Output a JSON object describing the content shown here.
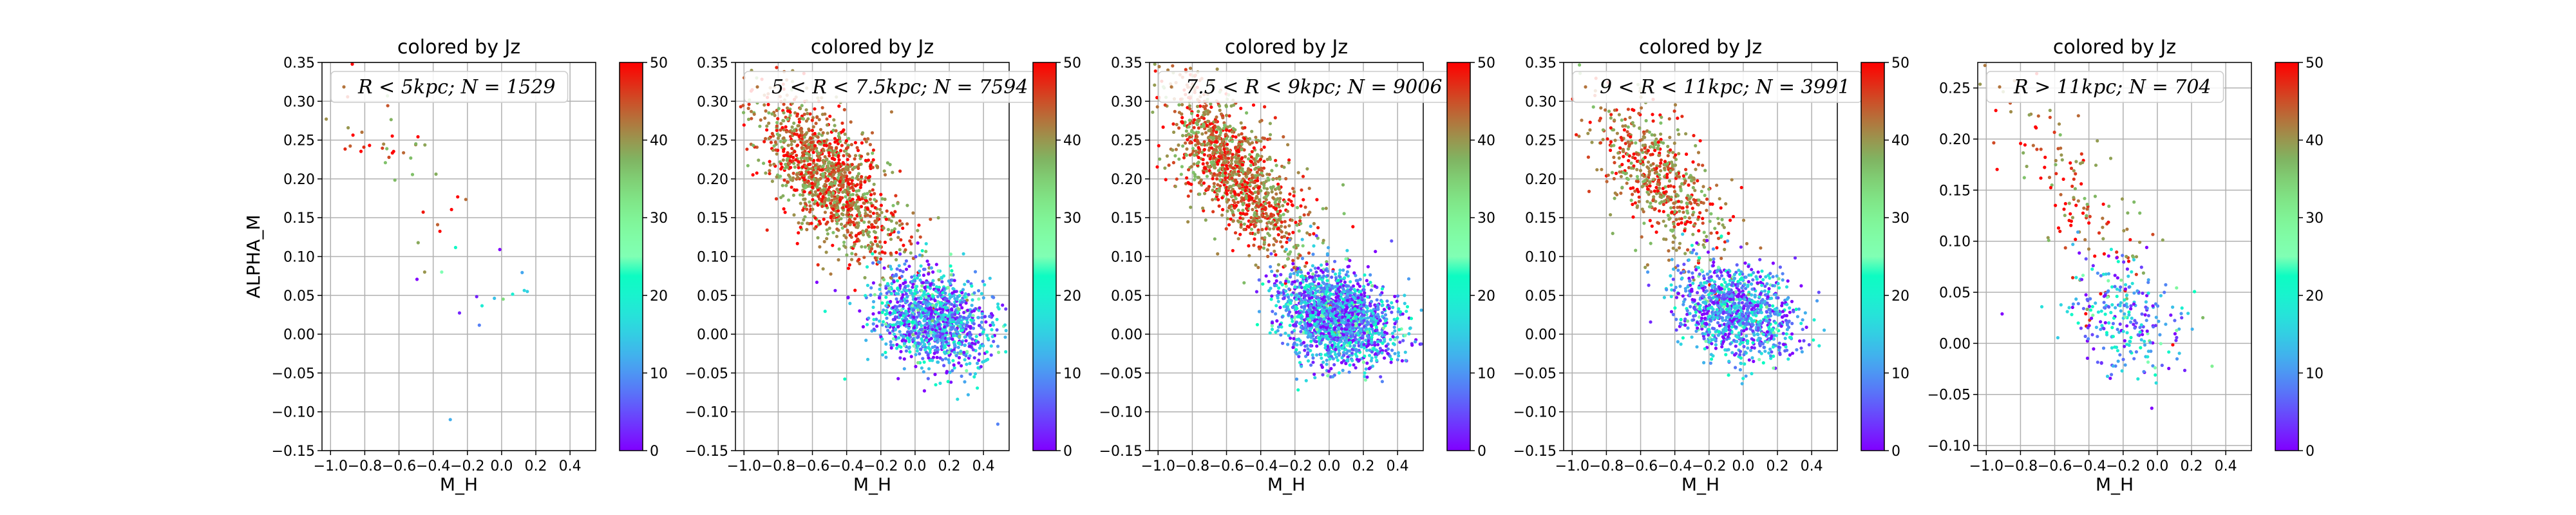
{
  "chart_data": [
    {
      "type": "scatter",
      "title": "colored by Jz",
      "xlabel": "M_H",
      "ylabel": "ALPHA_M",
      "legend": "R < 5kpc;  N = 1529",
      "xlim": [
        -1.05,
        0.55
      ],
      "ylim": [
        -0.15,
        0.35
      ],
      "xticks": [
        -1.0,
        -0.8,
        -0.6,
        -0.4,
        -0.2,
        0.0,
        0.2,
        0.4
      ],
      "xtick_labels": [
        "−1.0",
        "−0.8",
        "−0.6",
        "−0.4",
        "−0.2",
        "0.0",
        "0.2",
        "0.4"
      ],
      "yticks": [
        -0.15,
        -0.1,
        -0.05,
        0.0,
        0.05,
        0.1,
        0.15,
        0.2,
        0.25,
        0.3,
        0.35
      ],
      "ytick_labels": [
        "−0.15",
        "−0.10",
        "−0.05",
        "0.00",
        "0.05",
        "0.10",
        "0.15",
        "0.20",
        "0.25",
        "0.30",
        "0.35"
      ],
      "grid": true,
      "legend_position": "top",
      "colorbar": {
        "label": "",
        "range": [
          0,
          50
        ],
        "ticks": [
          0,
          10,
          20,
          30,
          40,
          50
        ],
        "tick_labels": [
          "0",
          "10",
          "20",
          "30",
          "40",
          "50"
        ],
        "colormap": "rainbow"
      },
      "distribution": {
        "thin_points": 40,
        "thick_points": 12,
        "thin_center": [
          -0.6,
          0.22
        ],
        "thick_center": [
          0.1,
          0.03
        ],
        "outliers": [
          [
            -0.3,
            -0.11,
            12
          ],
          [
            -0.45,
            0.08,
            40
          ],
          [
            0.15,
            0.055,
            15
          ],
          [
            -0.35,
            0.08,
            25
          ]
        ]
      }
    },
    {
      "type": "scatter",
      "title": "colored by Jz",
      "xlabel": "M_H",
      "ylabel": "",
      "legend": "5 < R < 7.5kpc;  N = 7594",
      "xlim": [
        -1.05,
        0.55
      ],
      "ylim": [
        -0.15,
        0.35
      ],
      "xticks": [
        -1.0,
        -0.8,
        -0.6,
        -0.4,
        -0.2,
        0.0,
        0.2,
        0.4
      ],
      "xtick_labels": [
        "−1.0",
        "−0.8",
        "−0.6",
        "−0.4",
        "−0.2",
        "0.0",
        "0.2",
        "0.4"
      ],
      "yticks": [
        -0.15,
        -0.1,
        -0.05,
        0.0,
        0.05,
        0.1,
        0.15,
        0.2,
        0.25,
        0.3,
        0.35
      ],
      "ytick_labels": [
        "−0.15",
        "−0.10",
        "−0.05",
        "0.00",
        "0.05",
        "0.10",
        "0.15",
        "0.20",
        "0.25",
        "0.30",
        "0.35"
      ],
      "grid": true,
      "legend_position": "top",
      "colorbar": {
        "label": "",
        "range": [
          0,
          50
        ],
        "ticks": [
          0,
          10,
          20,
          30,
          40,
          50
        ],
        "tick_labels": [
          "0",
          "10",
          "20",
          "30",
          "40",
          "50"
        ],
        "colormap": "rainbow"
      },
      "distribution": {
        "thin_points": 1300,
        "thick_points": 1200,
        "thin_center": [
          -0.5,
          0.2
        ],
        "thick_center": [
          0.1,
          0.02
        ],
        "outliers": []
      }
    },
    {
      "type": "scatter",
      "title": "colored by Jz",
      "xlabel": "M_H",
      "ylabel": "",
      "legend": "7.5 < R < 9kpc;  N = 9006",
      "xlim": [
        -1.05,
        0.55
      ],
      "ylim": [
        -0.15,
        0.35
      ],
      "xticks": [
        -1.0,
        -0.8,
        -0.6,
        -0.4,
        -0.2,
        0.0,
        0.2,
        0.4
      ],
      "xtick_labels": [
        "−1.0",
        "−0.8",
        "−0.6",
        "−0.4",
        "−0.2",
        "0.0",
        "0.2",
        "0.4"
      ],
      "yticks": [
        -0.15,
        -0.1,
        -0.05,
        0.0,
        0.05,
        0.1,
        0.15,
        0.2,
        0.25,
        0.3,
        0.35
      ],
      "ytick_labels": [
        "−0.15",
        "−0.10",
        "−0.05",
        "0.00",
        "0.05",
        "0.10",
        "0.15",
        "0.20",
        "0.25",
        "0.30",
        "0.35"
      ],
      "grid": true,
      "legend_position": "top",
      "colorbar": {
        "label": "",
        "range": [
          0,
          50
        ],
        "ticks": [
          0,
          10,
          20,
          30,
          40,
          50
        ],
        "tick_labels": [
          "0",
          "10",
          "20",
          "30",
          "40",
          "50"
        ],
        "colormap": "rainbow"
      },
      "distribution": {
        "thin_points": 1200,
        "thick_points": 1700,
        "thin_center": [
          -0.55,
          0.21
        ],
        "thick_center": [
          0.05,
          0.02
        ],
        "outliers": []
      }
    },
    {
      "type": "scatter",
      "title": "colored by Jz",
      "xlabel": "M_H",
      "ylabel": "",
      "legend": "9 < R < 11kpc;  N = 3991",
      "xlim": [
        -1.05,
        0.55
      ],
      "ylim": [
        -0.15,
        0.35
      ],
      "xticks": [
        -1.0,
        -0.8,
        -0.6,
        -0.4,
        -0.2,
        0.0,
        0.2,
        0.4
      ],
      "xtick_labels": [
        "−1.0",
        "−0.8",
        "−0.6",
        "−0.4",
        "−0.2",
        "0.0",
        "0.2",
        "0.4"
      ],
      "yticks": [
        -0.15,
        -0.1,
        -0.05,
        0.0,
        0.05,
        0.1,
        0.15,
        0.2,
        0.25,
        0.3,
        0.35
      ],
      "ytick_labels": [
        "−0.15",
        "−0.10",
        "−0.05",
        "0.00",
        "0.05",
        "0.10",
        "0.15",
        "0.20",
        "0.25",
        "0.30",
        "0.35"
      ],
      "grid": true,
      "legend_position": "top",
      "colorbar": {
        "label": "",
        "range": [
          0,
          50
        ],
        "ticks": [
          0,
          10,
          20,
          30,
          40,
          50
        ],
        "tick_labels": [
          "0",
          "10",
          "20",
          "30",
          "40",
          "50"
        ],
        "colormap": "rainbow"
      },
      "distribution": {
        "thin_points": 600,
        "thick_points": 1100,
        "thin_center": [
          -0.5,
          0.2
        ],
        "thick_center": [
          -0.05,
          0.03
        ],
        "outliers": []
      }
    },
    {
      "type": "scatter",
      "title": "colored by Jz",
      "xlabel": "M_H",
      "ylabel": "",
      "legend": "R > 11kpc;  N = 704",
      "xlim": [
        -1.05,
        0.55
      ],
      "ylim": [
        -0.105,
        0.275
      ],
      "xticks": [
        -1.0,
        -0.8,
        -0.6,
        -0.4,
        -0.2,
        0.0,
        0.2,
        0.4
      ],
      "xtick_labels": [
        "−1.0",
        "−0.8",
        "−0.6",
        "−0.4",
        "−0.2",
        "0.0",
        "0.2",
        "0.4"
      ],
      "yticks": [
        -0.1,
        -0.05,
        0.0,
        0.05,
        0.1,
        0.15,
        0.2,
        0.25
      ],
      "ytick_labels": [
        "−0.10",
        "−0.05",
        "0.00",
        "0.05",
        "0.10",
        "0.15",
        "0.20",
        "0.25"
      ],
      "grid": true,
      "legend_position": "top",
      "colorbar": {
        "label": "",
        "range": [
          0,
          50
        ],
        "ticks": [
          0,
          10,
          20,
          30,
          40,
          50
        ],
        "tick_labels": [
          "0",
          "10",
          "20",
          "30",
          "40",
          "50"
        ],
        "colormap": "rainbow"
      },
      "distribution": {
        "thin_points": 140,
        "thick_points": 260,
        "thin_center": [
          -0.45,
          0.14
        ],
        "thick_center": [
          -0.2,
          0.03
        ],
        "outliers": []
      }
    }
  ]
}
